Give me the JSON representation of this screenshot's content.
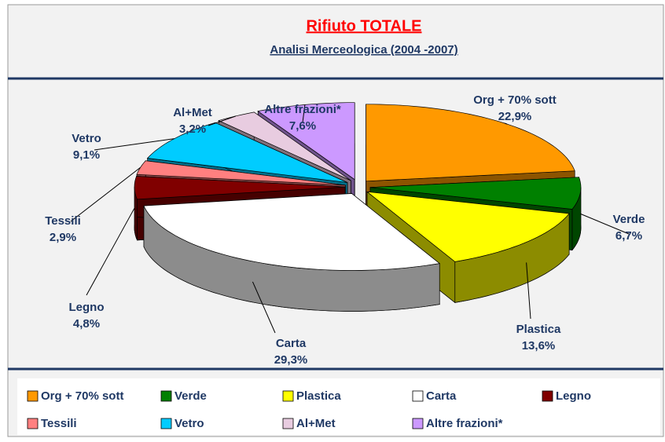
{
  "chart_data": {
    "type": "pie",
    "title": "Rifiuto TOTALE",
    "subtitle": "Analisi Merceologica (2004 -2007)",
    "categories": [
      "Org + 70% sott",
      "Verde",
      "Plastica",
      "Carta",
      "Legno",
      "Tessili",
      "Vetro",
      "Al+Met",
      "Altre frazioni*"
    ],
    "values": [
      22.9,
      6.7,
      13.6,
      29.3,
      4.8,
      2.9,
      9.1,
      3.2,
      7.6
    ],
    "value_labels": [
      "22,9%",
      "6,7%",
      "13,6%",
      "29,3%",
      "4,8%",
      "2,9%",
      "9,1%",
      "3,2%",
      "7,6%"
    ],
    "colors": [
      "#ff9900",
      "#008000",
      "#ffff00",
      "#ffffff",
      "#800000",
      "#ff8080",
      "#00ccff",
      "#e8cce0",
      "#cc99ff"
    ],
    "legend": "bottom"
  }
}
